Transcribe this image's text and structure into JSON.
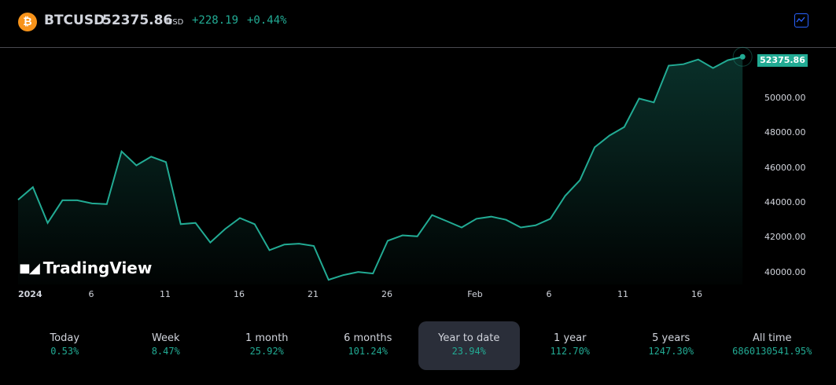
{
  "header": {
    "coin_icon": "bitcoin-icon",
    "symbol": "BTCUSD",
    "price": "52375.86",
    "currency": "USD",
    "change": "+228.19",
    "change_pct": "+0.44%",
    "chart_type_icon": "line-chart-icon"
  },
  "colors": {
    "up": "#22ab94",
    "accent": "#2962ff",
    "background": "#000000",
    "active_tab": "#2a2e39",
    "coin": "#f7931a"
  },
  "logo": {
    "text": "TradingView"
  },
  "price_tag": "52375.86",
  "y_ticks": [
    "50000.00",
    "48000.00",
    "46000.00",
    "44000.00",
    "42000.00",
    "40000.00"
  ],
  "x_ticks": [
    "2024",
    "6",
    "11",
    "16",
    "21",
    "26",
    "Feb",
    "6",
    "11",
    "16"
  ],
  "periods": [
    {
      "label": "Today",
      "value": "0.53%"
    },
    {
      "label": "Week",
      "value": "8.47%"
    },
    {
      "label": "1 month",
      "value": "25.92%"
    },
    {
      "label": "6 months",
      "value": "101.24%"
    },
    {
      "label": "Year to date",
      "value": "23.94%",
      "active": true
    },
    {
      "label": "1 year",
      "value": "112.70%"
    },
    {
      "label": "5 years",
      "value": "1247.30%"
    },
    {
      "label": "All time",
      "value": "6860130541.95%"
    }
  ],
  "chart_data": {
    "type": "area",
    "title": "BTCUSD",
    "xlabel": "",
    "ylabel": "USD",
    "ylim": [
      39500,
      53000
    ],
    "grid": false,
    "x": [
      "2024-01-01",
      "01-02",
      "01-03",
      "01-04",
      "01-05",
      "01-06",
      "01-07",
      "01-08",
      "01-09",
      "01-10",
      "01-11",
      "01-12",
      "01-13",
      "01-14",
      "01-15",
      "01-16",
      "01-17",
      "01-18",
      "01-19",
      "01-20",
      "01-21",
      "01-22",
      "01-23",
      "01-24",
      "01-25",
      "01-26",
      "01-27",
      "01-28",
      "01-29",
      "01-30",
      "01-31",
      "02-01",
      "02-02",
      "02-03",
      "02-04",
      "02-05",
      "02-06",
      "02-07",
      "02-08",
      "02-09",
      "02-10",
      "02-11",
      "02-12",
      "02-13",
      "02-14",
      "02-15",
      "02-16",
      "02-17",
      "02-18",
      "02-19"
    ],
    "values": [
      44180,
      44900,
      42850,
      44150,
      44150,
      43970,
      43930,
      46950,
      46150,
      46650,
      46340,
      42780,
      42850,
      41730,
      42500,
      43130,
      42780,
      41290,
      41610,
      41660,
      41530,
      39590,
      39860,
      40040,
      39950,
      41830,
      42140,
      42080,
      43300,
      42950,
      42590,
      43090,
      43210,
      43030,
      42590,
      42710,
      43090,
      44400,
      45300,
      47190,
      47860,
      48350,
      49980,
      49760,
      51870,
      51950,
      52220,
      51730,
      52180,
      52375.86
    ],
    "x_tick_labels": [
      "2024",
      "6",
      "11",
      "16",
      "21",
      "26",
      "Feb",
      "6",
      "11",
      "16"
    ],
    "y_tick_labels": [
      "40000.00",
      "42000.00",
      "44000.00",
      "46000.00",
      "48000.00",
      "50000.00"
    ],
    "last_price_label": "52375.86",
    "line_color": "#22ab94"
  }
}
